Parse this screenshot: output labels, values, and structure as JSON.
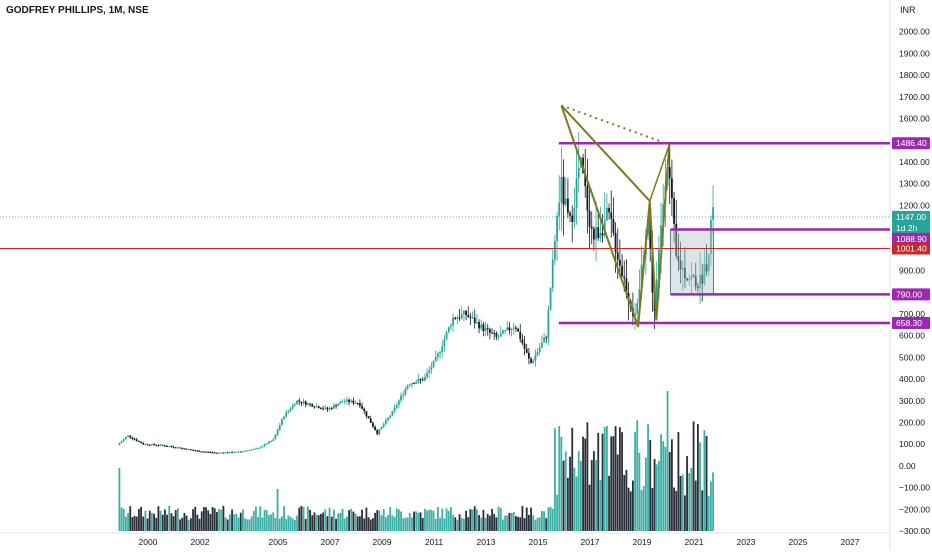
{
  "header": {
    "symbol_title": "GODFREY PHILLIPS, 1M, NSE",
    "currency": "INR"
  },
  "colors": {
    "up": "#26a69a",
    "down": "#131722",
    "volume_up": "#26a69a",
    "volume_down": "#131722",
    "pattern": "#7a7a1e",
    "level": "#9c27b0",
    "red_line": "#c62828",
    "last_price_line": "#26a69a",
    "range_box": "#b2c7cc"
  },
  "chart_data": {
    "type": "candlestick",
    "title": "GODFREY PHILLIPS, 1M, NSE",
    "x_ticks": [
      "2000",
      "2002",
      "2005",
      "2007",
      "2009",
      "2011",
      "2013",
      "2015",
      "2017",
      "2019",
      "2021",
      "2023",
      "2025",
      "2027"
    ],
    "y_ticks": [
      "2000.00",
      "1900.00",
      "1800.00",
      "1700.00",
      "1600.00",
      "1400.00",
      "1300.00",
      "1200.00",
      "900.00",
      "700.00",
      "600.00",
      "500.00",
      "400.00",
      "300.00",
      "200.00",
      "100.00",
      "0.00",
      "−100.00",
      "−200.00",
      "−300.00"
    ],
    "ylim": [
      -300,
      2100
    ],
    "price_labels": [
      {
        "text": "1486.40",
        "value": 1486.4,
        "kind": "level"
      },
      {
        "text": "1147.00",
        "value": 1147.0,
        "kind": "last"
      },
      {
        "text": "1d 2h",
        "value": 1107,
        "kind": "countdown"
      },
      {
        "text": "1088.90",
        "value": 1088.9,
        "kind": "level"
      },
      {
        "text": "1001.40",
        "value": 1001.4,
        "kind": "red"
      },
      {
        "text": "790.00",
        "value": 790.0,
        "kind": "level"
      },
      {
        "text": "658.30",
        "value": 658.3,
        "kind": "level"
      }
    ],
    "horizontal_levels": [
      {
        "name": "resistance-1486",
        "value": 1486.4,
        "from_year": 2015.8
      },
      {
        "name": "range-top-1088",
        "value": 1088.9,
        "from_year": 2020.1
      },
      {
        "name": "range-bottom-790",
        "value": 790.0,
        "from_year": 2020.1
      },
      {
        "name": "support-658",
        "value": 658.3,
        "from_year": 2015.8
      },
      {
        "name": "red-line-1001",
        "value": 1001.4,
        "from_year": 1998.5
      }
    ],
    "harmonic_pattern_points": [
      {
        "year": 2015.9,
        "price": 1660
      },
      {
        "year": 2018.85,
        "price": 640
      },
      {
        "year": 2019.3,
        "price": 1220
      },
      {
        "year": 2019.55,
        "price": 670
      },
      {
        "year": 2020.05,
        "price": 1480
      }
    ],
    "pattern_dotted_line": [
      {
        "year": 2015.9,
        "price": 1660
      },
      {
        "year": 2020.05,
        "price": 1480
      }
    ],
    "range_box": {
      "from_year": 2020.1,
      "to_year": 2021.75,
      "top": 1088.9,
      "bottom": 790.0
    },
    "price_anchors": [
      [
        1998.9,
        95
      ],
      [
        1999.3,
        140
      ],
      [
        1999.9,
        100
      ],
      [
        2000.6,
        95
      ],
      [
        2001.2,
        85
      ],
      [
        2001.9,
        70
      ],
      [
        2002.7,
        60
      ],
      [
        2003.6,
        65
      ],
      [
        2004.3,
        80
      ],
      [
        2004.9,
        120
      ],
      [
        2005.3,
        230
      ],
      [
        2005.8,
        300
      ],
      [
        2006.4,
        280
      ],
      [
        2007.0,
        260
      ],
      [
        2007.6,
        300
      ],
      [
        2008.2,
        290
      ],
      [
        2008.9,
        150
      ],
      [
        2009.5,
        250
      ],
      [
        2010.1,
        380
      ],
      [
        2010.7,
        400
      ],
      [
        2011.2,
        500
      ],
      [
        2011.8,
        680
      ],
      [
        2012.3,
        700
      ],
      [
        2012.9,
        640
      ],
      [
        2013.5,
        590
      ],
      [
        2014.2,
        650
      ],
      [
        2014.8,
        470
      ],
      [
        2015.4,
        600
      ],
      [
        2015.7,
        1000
      ],
      [
        2015.95,
        1300
      ],
      [
        2016.3,
        1100
      ],
      [
        2016.7,
        1400
      ],
      [
        2017.2,
        1050
      ],
      [
        2017.8,
        1150
      ],
      [
        2018.3,
        900
      ],
      [
        2018.85,
        660
      ],
      [
        2019.3,
        1180
      ],
      [
        2019.55,
        690
      ],
      [
        2020.05,
        1450
      ],
      [
        2020.4,
        950
      ],
      [
        2020.8,
        880
      ],
      [
        2021.3,
        840
      ],
      [
        2021.6,
        950
      ],
      [
        2021.75,
        1147
      ]
    ],
    "volume_heights_note": "relative bar heights, unitless",
    "volume_peaks": [
      {
        "year": 1998.9,
        "rel": 0.45
      },
      {
        "year": 2000.4,
        "rel": 0.12
      },
      {
        "year": 2005.0,
        "rel": 0.3
      },
      {
        "year": 2015.8,
        "rel": 0.75
      },
      {
        "year": 2016.7,
        "rel": 0.5
      },
      {
        "year": 2019.3,
        "rel": 0.65
      },
      {
        "year": 2020.0,
        "rel": 1.0
      },
      {
        "year": 2020.9,
        "rel": 0.45
      },
      {
        "year": 2021.5,
        "rel": 0.55
      }
    ]
  }
}
